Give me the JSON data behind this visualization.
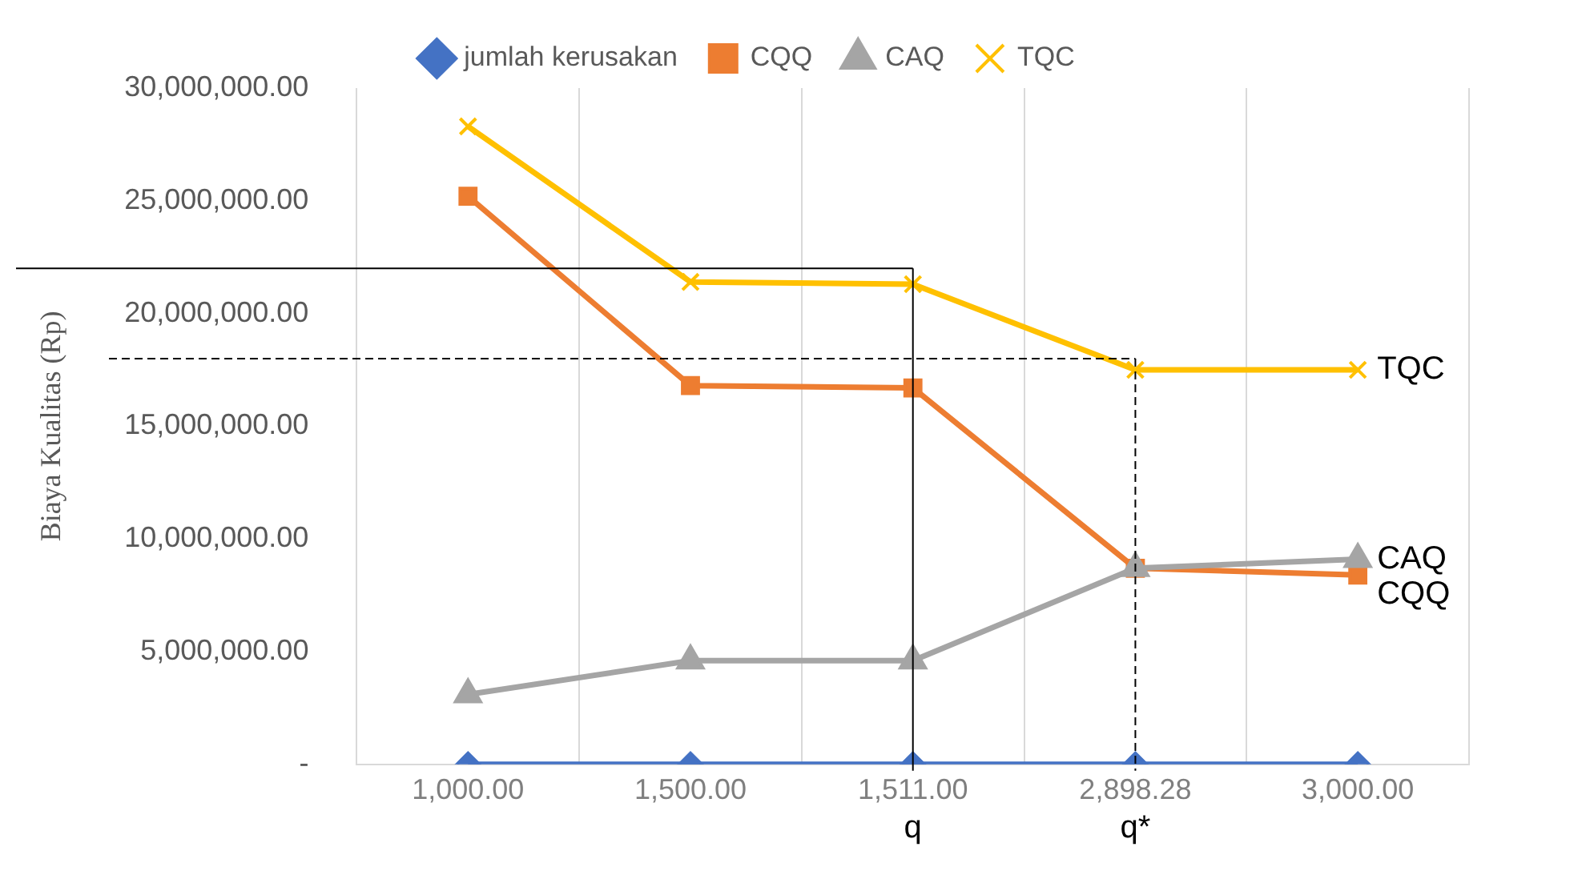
{
  "chart_data": {
    "type": "line",
    "ylabel": "Biaya Kualitas (Rp)",
    "categories": [
      "1,000.00",
      "1,500.00",
      "1,511.00",
      "2,898.28",
      "3,000.00"
    ],
    "series": [
      {
        "name": "jumlah kerusakan",
        "color": "#4472c4",
        "marker": "diamond",
        "values": [
          0,
          0,
          0,
          0,
          0
        ]
      },
      {
        "name": "CQQ",
        "color": "#ed7d31",
        "marker": "square",
        "values": [
          25200000,
          16800000,
          16700000,
          8700000,
          8400000
        ]
      },
      {
        "name": "CAQ",
        "color": "#a5a5a5",
        "marker": "triangle",
        "values": [
          3100000,
          4600000,
          4600000,
          8700000,
          9100000
        ]
      },
      {
        "name": "TQC",
        "color": "#ffc000",
        "marker": "cross",
        "values": [
          28300000,
          21400000,
          21300000,
          17500000,
          17500000
        ]
      }
    ],
    "ylim": [
      0,
      30000000
    ],
    "yticks": [
      {
        "value": 0,
        "label": "-"
      },
      {
        "value": 5000000,
        "label": "5,000,000.00"
      },
      {
        "value": 10000000,
        "label": "10,000,000.00"
      },
      {
        "value": 15000000,
        "label": "15,000,000.00"
      },
      {
        "value": 20000000,
        "label": "20,000,000.00"
      },
      {
        "value": 25000000,
        "label": "25,000,000.00"
      },
      {
        "value": 30000000,
        "label": "30,000,000.00"
      }
    ],
    "grid": "x",
    "legend": "top",
    "ref_lines": [
      {
        "axis": "y",
        "value": 22000000,
        "color": "#000000",
        "line_style": "solid"
      },
      {
        "axis": "y",
        "value": 18000000,
        "color": "#000000",
        "line_style": "dashed"
      },
      {
        "axis": "x",
        "value": "1,511.00",
        "label": "q",
        "color": "#000000",
        "line_style": "solid"
      },
      {
        "axis": "x",
        "value": "2,898.28",
        "label": "q*",
        "color": "#000000",
        "line_style": "dashed"
      }
    ],
    "annotations": [
      {
        "text": "TQC",
        "x": "3,000.00",
        "y": 17500000
      },
      {
        "text": "CAQ",
        "x": "3,000.00",
        "y": 9100000
      },
      {
        "text": "CQQ",
        "x": "3,000.00",
        "y": 8400000
      }
    ]
  }
}
